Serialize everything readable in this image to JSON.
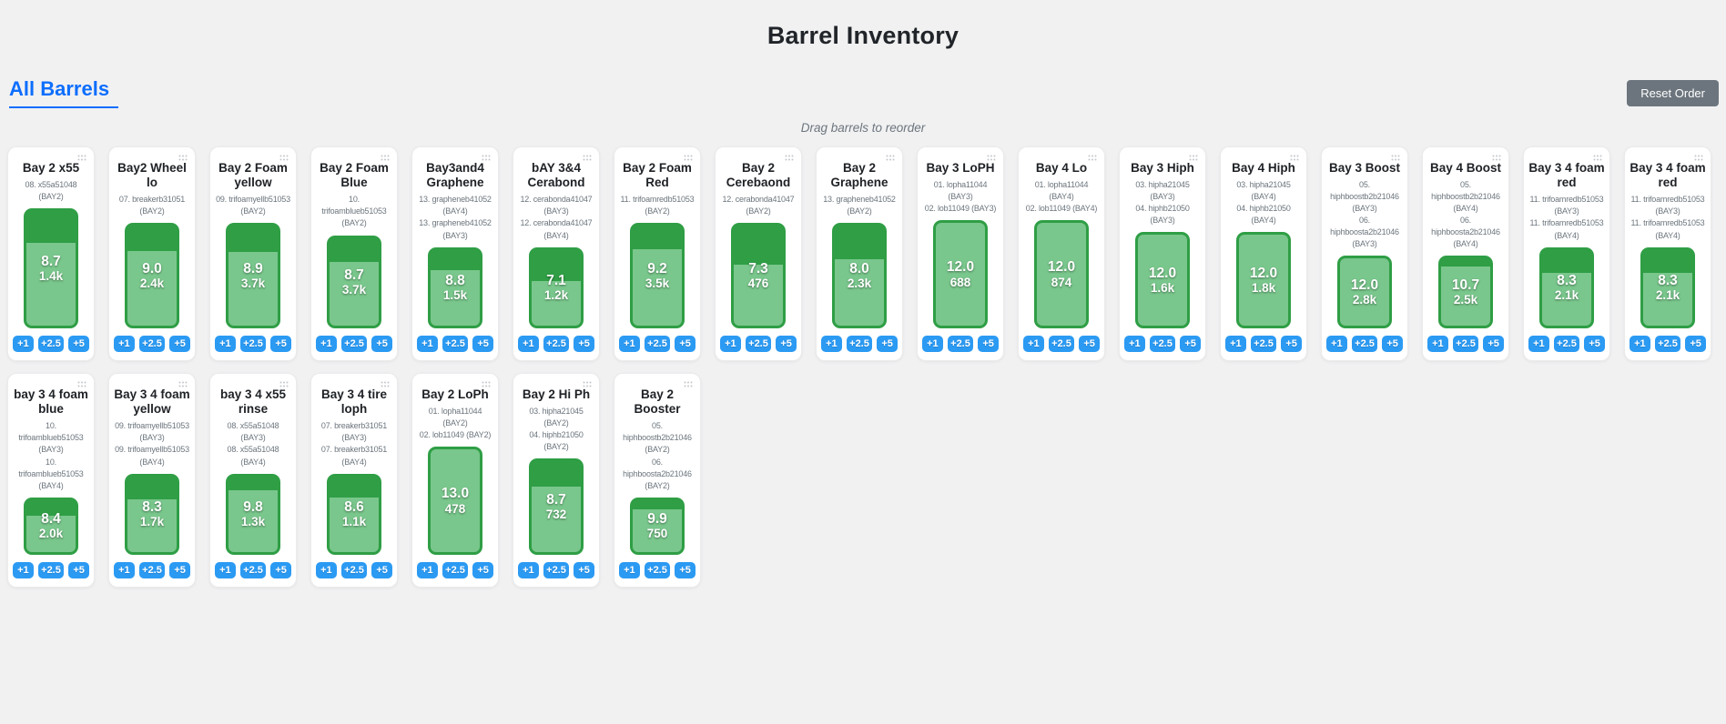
{
  "page": {
    "title": "Barrel Inventory",
    "section_title": "All Barrels",
    "reset_button_label": "Reset Order",
    "hint": "Drag barrels to reorder"
  },
  "buttons": {
    "labels": [
      "+1",
      "+2.5",
      "+5"
    ]
  },
  "colors": {
    "page_background": "#f1f1f2",
    "accent_blue": "#0d6efd",
    "button_blue": "#2b9af3",
    "reset_gray": "#6c757d",
    "barrel_dark_green": "#2f9e45",
    "barrel_fill_green": "#79c78c"
  },
  "barrels": [
    {
      "title": "Bay 2 x55",
      "lines": [
        "08. x55a51048 (BAY2)"
      ],
      "value": "8.7",
      "amount": "1.4k",
      "fill_pct": 72.5
    },
    {
      "title": "Bay2 Wheel lo",
      "lines": [
        "07. breakerb31051 (BAY2)"
      ],
      "value": "9.0",
      "amount": "2.4k",
      "fill_pct": 75
    },
    {
      "title": "Bay 2 Foam yellow",
      "lines": [
        "09. trifoamyellb51053 (BAY2)"
      ],
      "value": "8.9",
      "amount": "3.7k",
      "fill_pct": 74
    },
    {
      "title": "Bay 2 Foam Blue",
      "lines": [
        "10. trifoamblueb51053 (BAY2)"
      ],
      "value": "8.7",
      "amount": "3.7k",
      "fill_pct": 72.5
    },
    {
      "title": "Bay3and4 Graphene",
      "lines": [
        "13. grapheneb41052 (BAY4)",
        "13. grapheneb41052 (BAY3)"
      ],
      "value": "8.8",
      "amount": "1.5k",
      "fill_pct": 73
    },
    {
      "title": "bAY 3&4 Cerabond",
      "lines": [
        "12. cerabonda41047 (BAY3)",
        "12. cerabonda41047 (BAY4)"
      ],
      "value": "7.1",
      "amount": "1.2k",
      "fill_pct": 59
    },
    {
      "title": "Bay 2 Foam Red",
      "lines": [
        "11. trifoamredb51053 (BAY2)"
      ],
      "value": "9.2",
      "amount": "3.5k",
      "fill_pct": 77
    },
    {
      "title": "Bay 2 Cerebaond",
      "lines": [
        "12. cerabonda41047 (BAY2)"
      ],
      "value": "7.3",
      "amount": "476",
      "fill_pct": 61
    },
    {
      "title": "Bay 2 Graphene",
      "lines": [
        "13. grapheneb41052 (BAY2)"
      ],
      "value": "8.0",
      "amount": "2.3k",
      "fill_pct": 67
    },
    {
      "title": "Bay 3 LoPH",
      "lines": [
        "01. lopha11044 (BAY3)",
        "02. lob11049 (BAY3)"
      ],
      "value": "12.0",
      "amount": "688",
      "fill_pct": 100
    },
    {
      "title": "Bay 4 Lo",
      "lines": [
        "01. lopha11044 (BAY4)",
        "02. lob11049 (BAY4)"
      ],
      "value": "12.0",
      "amount": "874",
      "fill_pct": 100
    },
    {
      "title": "Bay 3 Hiph",
      "lines": [
        "03. hipha21045 (BAY3)",
        "04. hiphb21050 (BAY3)"
      ],
      "value": "12.0",
      "amount": "1.6k",
      "fill_pct": 100
    },
    {
      "title": "Bay 4 Hiph",
      "lines": [
        "03. hipha21045 (BAY4)",
        "04. hiphb21050 (BAY4)"
      ],
      "value": "12.0",
      "amount": "1.8k",
      "fill_pct": 100
    },
    {
      "title": "Bay 3 Boost",
      "lines": [
        "05. hiphboostb2b21046 (BAY3)",
        "06. hiphboosta2b21046 (BAY3)"
      ],
      "value": "12.0",
      "amount": "2.8k",
      "fill_pct": 100
    },
    {
      "title": "Bay 4 Boost",
      "lines": [
        "05. hiphboostb2b21046 (BAY4)",
        "06. hiphboosta2b21046 (BAY4)"
      ],
      "value": "10.7",
      "amount": "2.5k",
      "fill_pct": 89
    },
    {
      "title": "Bay 3 4 foam red",
      "lines": [
        "11. trifoamredb51053 (BAY3)",
        "11. trifoamredb51053 (BAY4)"
      ],
      "value": "8.3",
      "amount": "2.1k",
      "fill_pct": 69
    },
    {
      "title": "Bay 3 4 foam red",
      "lines": [
        "11. trifoamredb51053 (BAY3)",
        "11. trifoamredb51053 (BAY4)"
      ],
      "value": "8.3",
      "amount": "2.1k",
      "fill_pct": 69
    },
    {
      "title": "bay 3 4 foam blue",
      "lines": [
        "10. trifoamblueb51053 (BAY3)",
        "10. trifoamblueb51053 (BAY4)"
      ],
      "value": "8.4",
      "amount": "2.0k",
      "fill_pct": 70
    },
    {
      "title": "Bay 3 4 foam yellow",
      "lines": [
        "09. trifoamyellb51053 (BAY3)",
        "09. trifoamyellb51053 (BAY4)"
      ],
      "value": "8.3",
      "amount": "1.7k",
      "fill_pct": 69
    },
    {
      "title": "bay 3 4 x55 rinse",
      "lines": [
        "08. x55a51048 (BAY3)",
        "08. x55a51048 (BAY4)"
      ],
      "value": "9.8",
      "amount": "1.3k",
      "fill_pct": 82
    },
    {
      "title": "Bay 3 4 tire loph",
      "lines": [
        "07. breakerb31051 (BAY3)",
        "07. breakerb31051 (BAY4)"
      ],
      "value": "8.6",
      "amount": "1.1k",
      "fill_pct": 72
    },
    {
      "title": "Bay 2 LoPh",
      "lines": [
        "01. lopha11044 (BAY2)",
        "02. lob11049 (BAY2)"
      ],
      "value": "13.0",
      "amount": "478",
      "fill_pct": 100
    },
    {
      "title": "Bay 2 Hi Ph",
      "lines": [
        "03. hipha21045 (BAY2)",
        "04. hiphb21050 (BAY2)"
      ],
      "value": "8.7",
      "amount": "732",
      "fill_pct": 72.5
    },
    {
      "title": "Bay 2 Booster",
      "lines": [
        "05. hiphboostb2b21046 (BAY2)",
        "06. hiphboosta2b21046 (BAY2)"
      ],
      "value": "9.9",
      "amount": "750",
      "fill_pct": 82.5
    }
  ]
}
